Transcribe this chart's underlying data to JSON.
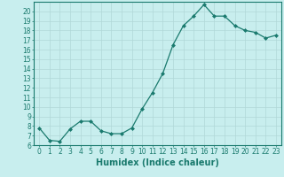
{
  "x": [
    0,
    1,
    2,
    3,
    4,
    5,
    6,
    7,
    8,
    9,
    10,
    11,
    12,
    13,
    14,
    15,
    16,
    17,
    18,
    19,
    20,
    21,
    22,
    23
  ],
  "y": [
    7.8,
    6.5,
    6.4,
    7.7,
    8.5,
    8.5,
    7.5,
    7.2,
    7.2,
    7.8,
    9.8,
    11.5,
    13.5,
    16.5,
    18.5,
    19.5,
    20.7,
    19.5,
    19.5,
    18.5,
    18.0,
    17.8,
    17.2,
    17.5
  ],
  "line_color": "#1a7a6e",
  "marker": "D",
  "marker_size": 2,
  "bg_color": "#c8eeee",
  "grid_color": "#b0d8d8",
  "xlabel": "Humidex (Indice chaleur)",
  "xlim": [
    -0.5,
    23.5
  ],
  "ylim": [
    6,
    21
  ],
  "yticks": [
    6,
    7,
    8,
    9,
    10,
    11,
    12,
    13,
    14,
    15,
    16,
    17,
    18,
    19,
    20
  ],
  "xticks": [
    0,
    1,
    2,
    3,
    4,
    5,
    6,
    7,
    8,
    9,
    10,
    11,
    12,
    13,
    14,
    15,
    16,
    17,
    18,
    19,
    20,
    21,
    22,
    23
  ],
  "tick_fontsize": 5.5,
  "xlabel_fontsize": 7,
  "spine_color": "#1a7a6e"
}
